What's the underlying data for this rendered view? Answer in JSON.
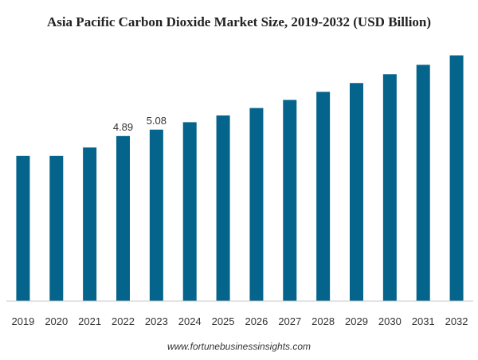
{
  "chart_data": {
    "type": "bar",
    "title": "Asia Pacific Carbon Dioxide Market Size, 2019-2032 (USD Billion)",
    "xlabel": "",
    "ylabel": "",
    "categories": [
      "2019",
      "2020",
      "2021",
      "2022",
      "2023",
      "2024",
      "2025",
      "2026",
      "2027",
      "2028",
      "2029",
      "2030",
      "2031",
      "2032"
    ],
    "values": [
      4.3,
      4.3,
      4.55,
      4.89,
      5.08,
      5.3,
      5.5,
      5.72,
      5.96,
      6.2,
      6.46,
      6.72,
      7.0,
      7.28
    ],
    "data_labels": [
      {
        "category": "2022",
        "text": "4.89"
      },
      {
        "category": "2023",
        "text": "5.08"
      }
    ],
    "ylim": [
      0,
      8.26
    ],
    "grid": false,
    "legend": "none",
    "bar_color": "#04648c"
  },
  "source": "www.fortunebusinessinsights.com"
}
